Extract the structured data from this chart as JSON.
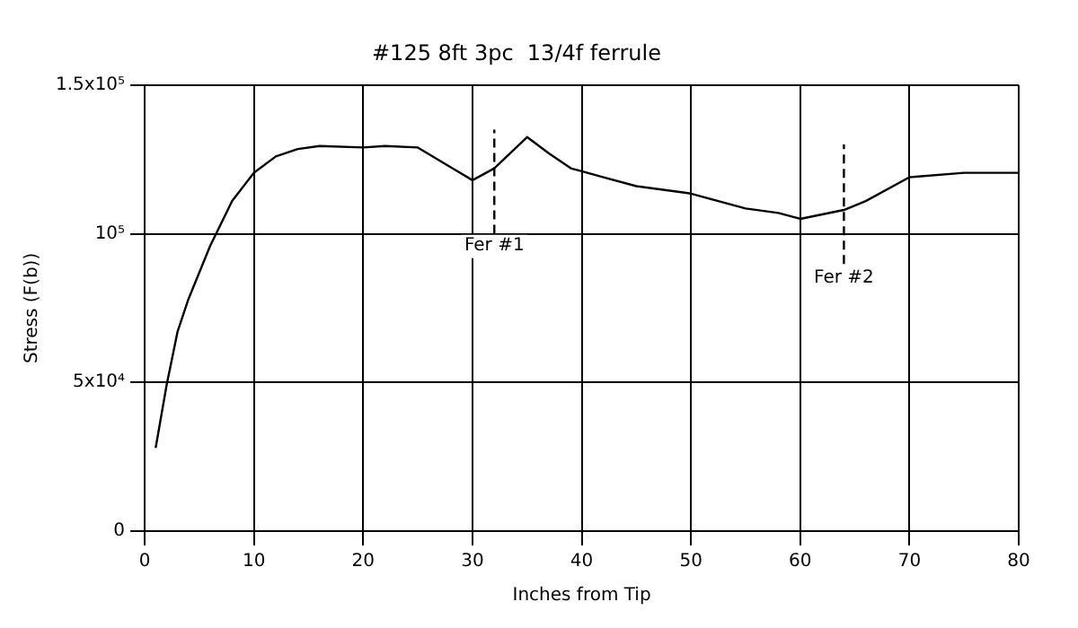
{
  "chart_data": {
    "type": "line",
    "title": "#125 8ft 3pc  13/4f ferrule",
    "xlabel": "Inches from Tip",
    "ylabel": "Stress (F(b))",
    "series": [
      {
        "color": "#000000",
        "x": [
          1,
          2,
          3,
          4,
          6,
          8,
          10,
          12,
          14,
          16,
          20,
          22,
          25,
          30,
          32,
          35,
          37,
          39,
          40,
          42,
          45,
          50,
          55,
          58,
          60,
          64,
          66,
          70,
          75,
          80
        ],
        "values": [
          28000,
          49000,
          67000,
          78000,
          96000,
          111000,
          120500,
          126000,
          128500,
          129500,
          129000,
          129500,
          129000,
          118000,
          122000,
          132500,
          127000,
          122000,
          121000,
          119000,
          116000,
          113500,
          108500,
          107000,
          105000,
          108000,
          111000,
          119000,
          120500,
          120500
        ]
      },
      {
        "color": "#000000",
        "line_style": "dashed",
        "x": [
          32,
          32
        ],
        "values": [
          100000,
          135000
        ]
      },
      {
        "color": "#000000",
        "line_style": "dashed",
        "x": [
          64,
          64
        ],
        "values": [
          85000,
          130000
        ]
      }
    ],
    "annotations": [
      {
        "text": "Fer #1",
        "x": 32,
        "y": 99000
      },
      {
        "text": "Fer #2",
        "x": 64,
        "y": 88000
      }
    ],
    "xlim": [
      0,
      80
    ],
    "xticks": [
      0,
      10,
      20,
      30,
      40,
      50,
      60,
      70,
      80
    ],
    "ylim": [
      0,
      150000
    ],
    "yticks": [
      0,
      {
        "value": 50000,
        "label": "5x10⁴"
      },
      {
        "value": 100000,
        "label": "10⁵"
      },
      {
        "value": 150000,
        "label": "1.5x10⁵"
      }
    ],
    "grid": true,
    "legend": false
  }
}
